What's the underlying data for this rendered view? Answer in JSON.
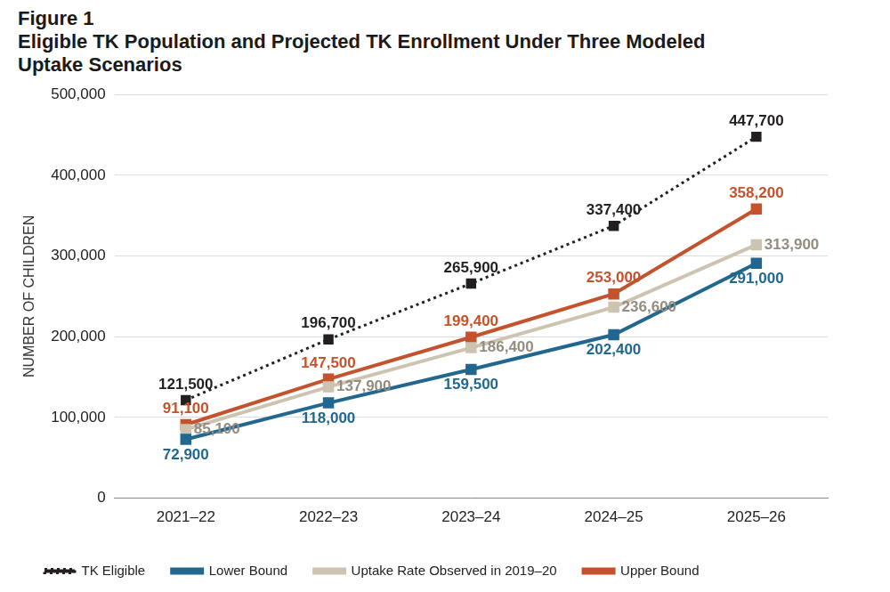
{
  "chart_data": {
    "type": "line",
    "figure_label": "Figure 1",
    "title": "Eligible TK Population and Projected TK Enrollment Under Three Modeled Uptake Scenarios",
    "ylabel": "NUMBER OF CHILDREN",
    "categories": [
      "2021–22",
      "2022–23",
      "2023–24",
      "2024–25",
      "2025–26"
    ],
    "series": [
      {
        "name": "TK Eligible",
        "color": "#231f20",
        "line_style": "dotted",
        "marker": "square",
        "values": [
          121500,
          196700,
          265900,
          337400,
          447700
        ],
        "value_labels": [
          "121,500",
          "196,700",
          "265,900",
          "337,400",
          "447,700"
        ]
      },
      {
        "name": "Lower Bound",
        "color": "#21678f",
        "line_style": "solid",
        "marker": "square",
        "values": [
          72900,
          118000,
          159500,
          202400,
          291000
        ],
        "value_labels": [
          "72,900",
          "118,000",
          "159,500",
          "202,400",
          "291,000"
        ]
      },
      {
        "name": "Uptake Rate Observed in 2019–20",
        "color": "#cdc3b1",
        "line_style": "solid",
        "marker": "square",
        "values": [
          85100,
          137900,
          186400,
          236600,
          313900
        ],
        "value_labels": [
          "85,100",
          "137,900",
          "186,400",
          "236,600",
          "313,900"
        ]
      },
      {
        "name": "Upper Bound",
        "color": "#c4532d",
        "line_style": "solid",
        "marker": "square",
        "values": [
          91100,
          147500,
          199400,
          253000,
          358200
        ],
        "value_labels": [
          "91,100",
          "147,500",
          "199,400",
          "253,000",
          "358,200"
        ]
      }
    ],
    "ylim": [
      0,
      500000
    ],
    "yticks": [
      0,
      {
        "value": 100000,
        "label": "100,000"
      },
      {
        "value": 200000,
        "label": "200,000"
      },
      {
        "value": 300000,
        "label": "300,000"
      },
      {
        "value": 400000,
        "label": "400,000"
      },
      {
        "value": 500000,
        "label": "500,000"
      }
    ],
    "grid": true,
    "legend": "bottom",
    "data_labels": true
  }
}
